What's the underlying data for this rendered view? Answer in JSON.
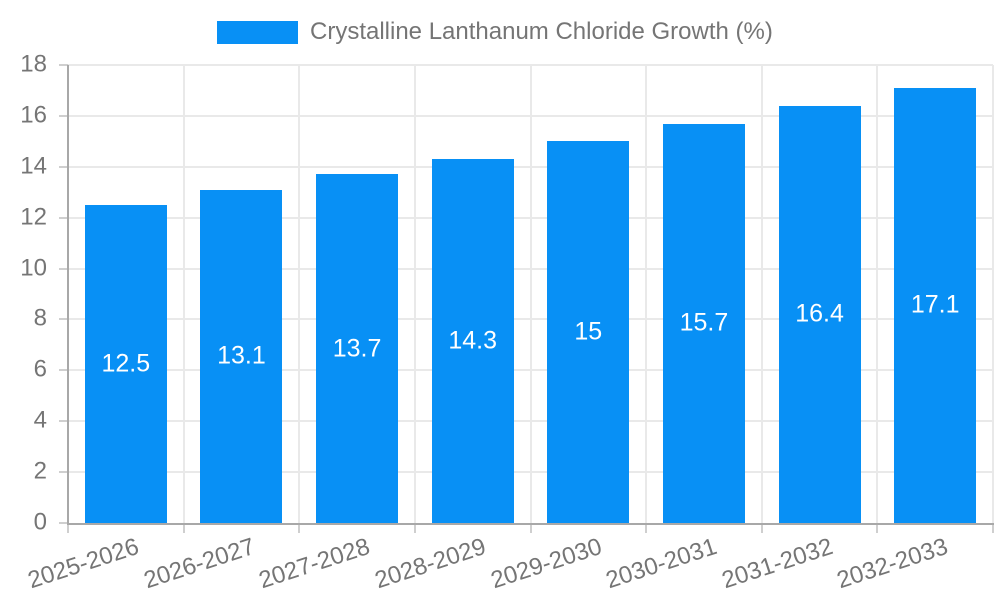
{
  "chart_data": {
    "type": "bar",
    "title": "Crystalline Lanthanum Chloride Growth (%)",
    "categories": [
      "2025-2026",
      "2026-2027",
      "2027-2028",
      "2028-2029",
      "2029-2030",
      "2030-2031",
      "2031-2032",
      "2032-2033"
    ],
    "values": [
      12.5,
      13.1,
      13.7,
      14.3,
      15,
      15.7,
      16.4,
      17.1
    ],
    "value_labels": [
      "12.5",
      "13.1",
      "13.7",
      "14.3",
      "15",
      "15.7",
      "16.4",
      "17.1"
    ],
    "xlabel": "",
    "ylabel": "",
    "ylim": [
      0,
      18
    ],
    "ytick_step": 2,
    "yticks": [
      0,
      2,
      4,
      6,
      8,
      10,
      12,
      14,
      16,
      18
    ],
    "grid": true,
    "legend_position": "top",
    "colors": {
      "bar": "#0890f5",
      "axis": "#a8a8a8",
      "grid": "#e9e9e9",
      "tick": "#cfcfcf",
      "text": "#757575",
      "bar_label": "#ffffff",
      "background": "#ffffff"
    }
  }
}
